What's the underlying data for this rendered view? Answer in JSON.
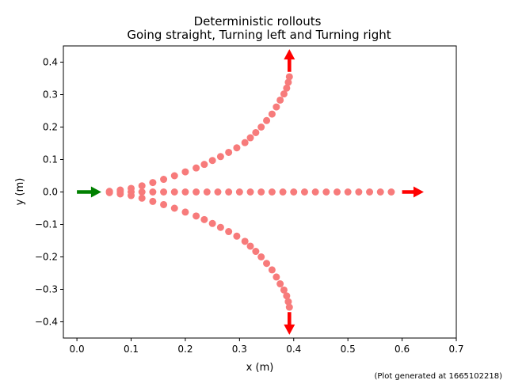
{
  "chart_data": {
    "type": "scatter",
    "title": "Deterministic rollouts",
    "subtitle": "Going straight, Turning left and Turning right",
    "xlabel": "x (m)",
    "ylabel": "y (m)",
    "xlim": [
      -0.025,
      0.7
    ],
    "ylim": [
      -0.45,
      0.45
    ],
    "xticks": [
      "0.0",
      "0.1",
      "0.2",
      "0.3",
      "0.4",
      "0.5",
      "0.6",
      "0.7"
    ],
    "yticks": [
      "0.4",
      "0.3",
      "0.2",
      "0.1",
      "0",
      "-0.1",
      "-0.2",
      "-0.3",
      "-0.4"
    ],
    "grid": false,
    "footnote": "(Plot generated at 1665102218)",
    "point_color": "#f77b7b",
    "start_arrow_color": "#008000",
    "end_arrow_color": "#ff0000",
    "start_arrow": {
      "x": 0.0,
      "y": 0.0,
      "dx": 0.045,
      "dy": 0.0
    },
    "series": [
      {
        "points": [
          [
            0.06,
            0.0
          ],
          [
            0.08,
            0.0
          ],
          [
            0.1,
            0.0
          ],
          [
            0.12,
            0.0
          ],
          [
            0.14,
            0.0
          ],
          [
            0.16,
            0.0
          ],
          [
            0.18,
            0.0
          ],
          [
            0.2,
            0.0
          ],
          [
            0.22,
            0.0
          ],
          [
            0.24,
            0.0
          ],
          [
            0.26,
            0.0
          ],
          [
            0.28,
            0.0
          ],
          [
            0.3,
            0.0
          ],
          [
            0.32,
            0.0
          ],
          [
            0.34,
            0.0
          ],
          [
            0.36,
            0.0
          ],
          [
            0.38,
            0.0
          ],
          [
            0.4,
            0.0
          ],
          [
            0.42,
            0.0
          ],
          [
            0.44,
            0.0
          ],
          [
            0.46,
            0.0
          ],
          [
            0.48,
            0.0
          ],
          [
            0.5,
            0.0
          ],
          [
            0.52,
            0.0
          ],
          [
            0.54,
            0.0
          ],
          [
            0.56,
            0.0
          ],
          [
            0.58,
            0.0
          ]
        ],
        "end_arrow": {
          "x": 0.6,
          "y": 0.0,
          "dx": 0.04,
          "dy": 0.0
        }
      },
      {
        "points": [
          [
            0.06,
            0.002
          ],
          [
            0.08,
            0.006
          ],
          [
            0.1,
            0.011
          ],
          [
            0.12,
            0.019
          ],
          [
            0.14,
            0.029
          ],
          [
            0.16,
            0.039
          ],
          [
            0.18,
            0.05
          ],
          [
            0.2,
            0.062
          ],
          [
            0.22,
            0.074
          ],
          [
            0.235,
            0.085
          ],
          [
            0.25,
            0.097
          ],
          [
            0.265,
            0.109
          ],
          [
            0.28,
            0.122
          ],
          [
            0.295,
            0.136
          ],
          [
            0.31,
            0.152
          ],
          [
            0.32,
            0.167
          ],
          [
            0.33,
            0.183
          ],
          [
            0.34,
            0.2
          ],
          [
            0.35,
            0.22
          ],
          [
            0.36,
            0.24
          ],
          [
            0.368,
            0.262
          ],
          [
            0.375,
            0.283
          ],
          [
            0.382,
            0.302
          ],
          [
            0.387,
            0.32
          ],
          [
            0.39,
            0.338
          ],
          [
            0.392,
            0.355
          ]
        ],
        "end_arrow": {
          "x": 0.392,
          "y": 0.37,
          "dx": 0.0,
          "dy": 0.07
        }
      },
      {
        "points": [
          [
            0.06,
            -0.002
          ],
          [
            0.08,
            -0.006
          ],
          [
            0.1,
            -0.011
          ],
          [
            0.12,
            -0.019
          ],
          [
            0.14,
            -0.029
          ],
          [
            0.16,
            -0.039
          ],
          [
            0.18,
            -0.05
          ],
          [
            0.2,
            -0.062
          ],
          [
            0.22,
            -0.074
          ],
          [
            0.235,
            -0.085
          ],
          [
            0.25,
            -0.097
          ],
          [
            0.265,
            -0.109
          ],
          [
            0.28,
            -0.122
          ],
          [
            0.295,
            -0.136
          ],
          [
            0.31,
            -0.152
          ],
          [
            0.32,
            -0.167
          ],
          [
            0.33,
            -0.183
          ],
          [
            0.34,
            -0.2
          ],
          [
            0.35,
            -0.22
          ],
          [
            0.36,
            -0.24
          ],
          [
            0.368,
            -0.262
          ],
          [
            0.375,
            -0.283
          ],
          [
            0.382,
            -0.302
          ],
          [
            0.387,
            -0.32
          ],
          [
            0.39,
            -0.338
          ],
          [
            0.392,
            -0.355
          ]
        ],
        "end_arrow": {
          "x": 0.392,
          "y": -0.37,
          "dx": 0.0,
          "dy": -0.07
        }
      }
    ]
  }
}
